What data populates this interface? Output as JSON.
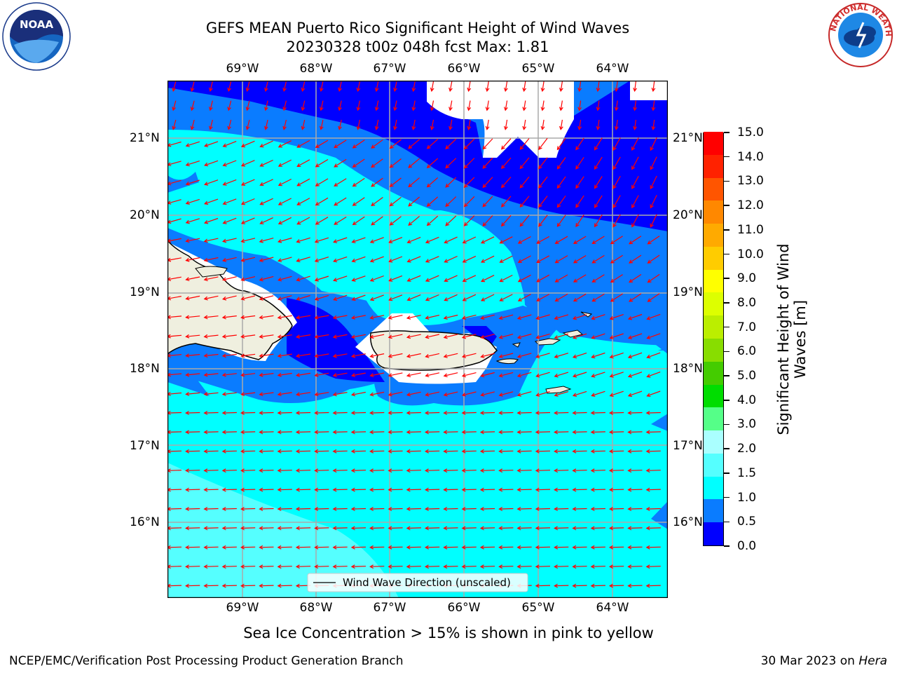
{
  "title": "GEFS MEAN Puerto Rico Significant Height of Wind Waves",
  "subtitle": "20230328 t00z 048h fcst   Max: 1.81",
  "lon_labels": [
    "69°W",
    "68°W",
    "67°W",
    "66°W",
    "65°W",
    "64°W"
  ],
  "lat_labels": [
    "21°N",
    "20°N",
    "19°N",
    "18°N",
    "17°N",
    "16°N"
  ],
  "legend_label": "Wind Wave Direction (unscaled)",
  "colorbar": {
    "label_line1": "Significant Height of Wind",
    "label_line2": "Waves [m]",
    "ticks": [
      "0.0",
      "0.5",
      "1.0",
      "1.5",
      "2.0",
      "3.0",
      "4.0",
      "5.0",
      "6.0",
      "7.0",
      "8.0",
      "9.0",
      "10.0",
      "11.0",
      "12.0",
      "13.0",
      "14.0",
      "15.0"
    ],
    "colors": [
      "#0000ff",
      "#0a7cff",
      "#00ffff",
      "#55ffff",
      "#aaffff",
      "#55ff88",
      "#00dd00",
      "#44cc00",
      "#88dd00",
      "#bbee00",
      "#ddff00",
      "#ffff00",
      "#ffcc00",
      "#ffaa00",
      "#ff8800",
      "#ff5500",
      "#ff2200",
      "#ff0000"
    ]
  },
  "footer_note": "Sea Ice Concentration > 15% is shown in pink to yellow",
  "credit": "NCEP/EMC/Verification Post Processing Product Generation Branch",
  "date": "30 Mar 2023 on",
  "machine": "Hera",
  "logos": {
    "left": "noaa-logo",
    "right": "nws-logo"
  }
}
